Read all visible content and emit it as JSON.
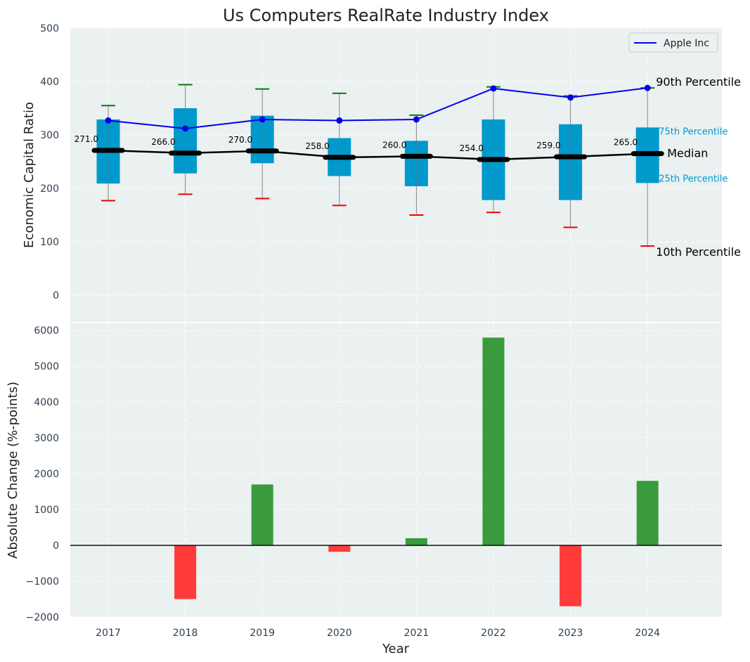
{
  "chart_data": [
    {
      "type": "box",
      "title": "Us Computers RealRate Industry Index",
      "ylabel": "Economic Capital Ratio",
      "xlabel": "",
      "ylim": [
        -50,
        500
      ],
      "yticks": [
        0,
        100,
        200,
        300,
        400,
        500
      ],
      "grid": true,
      "legend_position": "top-right",
      "categories": [
        "2017",
        "2018",
        "2019",
        "2020",
        "2021",
        "2022",
        "2023",
        "2024"
      ],
      "boxes": [
        {
          "p10": 177,
          "p25": 209,
          "median": 271,
          "p75": 329,
          "p90": 355
        },
        {
          "p10": 189,
          "p25": 228,
          "median": 266,
          "p75": 350,
          "p90": 394
        },
        {
          "p10": 181,
          "p25": 247,
          "median": 270,
          "p75": 336,
          "p90": 386
        },
        {
          "p10": 168,
          "p25": 223,
          "median": 258,
          "p75": 294,
          "p90": 378
        },
        {
          "p10": 150,
          "p25": 204,
          "median": 260,
          "p75": 289,
          "p90": 337
        },
        {
          "p10": 155,
          "p25": 178,
          "median": 254,
          "p75": 329,
          "p90": 390
        },
        {
          "p10": 127,
          "p25": 178,
          "median": 259,
          "p75": 320,
          "p90": 373
        },
        {
          "p10": 92,
          "p25": 210,
          "median": 265,
          "p75": 314,
          "p90": 388
        }
      ],
      "median_labels": [
        "271.0",
        "266.0",
        "270.0",
        "258.0",
        "260.0",
        "254.0",
        "259.0",
        "265.0"
      ],
      "series": [
        {
          "name": "Apple Inc",
          "values": [
            327,
            312,
            329,
            327,
            329,
            387,
            370,
            388
          ],
          "color": "#0000ee"
        }
      ],
      "annotations": {
        "p90": "90th Percentile",
        "p75": "75th Percentile",
        "median": "Median",
        "p25": "25th Percentile",
        "p10": "10th Percentile"
      },
      "colors": {
        "box": "#0099cc",
        "median": "#000000",
        "whisker_top": "#008000",
        "whisker_bottom": "#ee0000",
        "background": "#ebf0f0"
      }
    },
    {
      "type": "bar",
      "ylabel": "Absolute Change (%-points)",
      "xlabel": "Year",
      "ylim": [
        -2000,
        6200
      ],
      "yticks": [
        -2000,
        -1000,
        0,
        1000,
        2000,
        3000,
        4000,
        5000,
        6000
      ],
      "ytick_labels": [
        "−2000",
        "−1000",
        "0",
        "1000",
        "2000",
        "3000",
        "4000",
        "5000",
        "6000"
      ],
      "grid": true,
      "categories": [
        "2017",
        "2018",
        "2019",
        "2020",
        "2021",
        "2022",
        "2023",
        "2024"
      ],
      "values": [
        0,
        -1500,
        1700,
        -180,
        200,
        5800,
        -1700,
        1800
      ],
      "colors": {
        "positive": "#3a9b3d",
        "negative": "#ff3b3b",
        "background": "#ebf0f0"
      }
    }
  ]
}
